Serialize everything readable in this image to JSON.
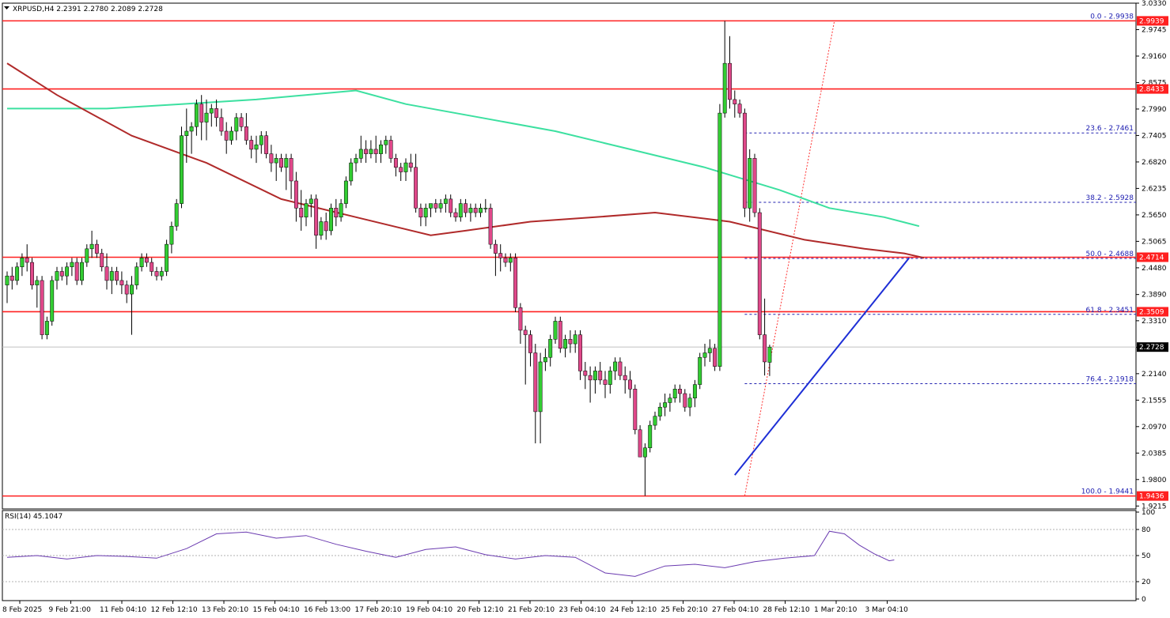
{
  "header": {
    "symbol_info": "XRPUSD,H4  2.2391 2.2780 2.2089 2.2728"
  },
  "rsi_panel": {
    "label": "RSI(14) 45.1047"
  },
  "colors": {
    "bull": "#32cd32",
    "bear": "#e0488a",
    "hline": "#ff2020",
    "fib": "#2020b0",
    "trend": "#1e2fd6",
    "ma_long": "#3ce0a0",
    "ma_short": "#b02a2a",
    "rsi": "#6a3ab0",
    "current_box": "#000000"
  },
  "chart_data": {
    "type": "candlestick",
    "symbol": "XRPUSD",
    "timeframe": "H4",
    "ylim": [
      1.915,
      3.033
    ],
    "y_ticks": [
      "3.0330",
      "2.9745",
      "2.9160",
      "2.8575",
      "2.7990",
      "2.7405",
      "2.6820",
      "2.6235",
      "2.5650",
      "2.5065",
      "2.4480",
      "2.3890",
      "2.3310",
      "2.2725",
      "2.2140",
      "2.1555",
      "2.0970",
      "2.0385",
      "1.9800",
      "1.9215"
    ],
    "x_ticks": [
      "8 Feb 2025",
      "9 Feb 21:00",
      "11 Feb 04:10",
      "12 Feb 12:10",
      "13 Feb 20:10",
      "15 Feb 04:10",
      "16 Feb 13:00",
      "17 Feb 20:10",
      "19 Feb 04:10",
      "20 Feb 12:10",
      "21 Feb 20:10",
      "23 Feb 04:10",
      "24 Feb 12:10",
      "25 Feb 20:10",
      "27 Feb 04:10",
      "28 Feb 12:10",
      "1 Mar 20:10",
      "3 Mar 04:10"
    ],
    "candle_spacing_note": "6 bars per tick interval",
    "candles": [
      [
        2.41,
        2.44,
        2.37,
        2.43
      ],
      [
        2.43,
        2.45,
        2.4,
        2.42
      ],
      [
        2.42,
        2.46,
        2.41,
        2.45
      ],
      [
        2.45,
        2.48,
        2.43,
        2.47
      ],
      [
        2.47,
        2.5,
        2.44,
        2.46
      ],
      [
        2.46,
        2.47,
        2.4,
        2.41
      ],
      [
        2.41,
        2.43,
        2.36,
        2.42
      ],
      [
        2.42,
        2.43,
        2.29,
        2.3
      ],
      [
        2.3,
        2.34,
        2.29,
        2.33
      ],
      [
        2.33,
        2.43,
        2.32,
        2.42
      ],
      [
        2.42,
        2.45,
        2.4,
        2.44
      ],
      [
        2.44,
        2.45,
        2.42,
        2.43
      ],
      [
        2.43,
        2.46,
        2.41,
        2.45
      ],
      [
        2.45,
        2.47,
        2.43,
        2.46
      ],
      [
        2.46,
        2.47,
        2.41,
        2.42
      ],
      [
        2.42,
        2.47,
        2.41,
        2.46
      ],
      [
        2.46,
        2.5,
        2.45,
        2.49
      ],
      [
        2.49,
        2.53,
        2.47,
        2.5
      ],
      [
        2.5,
        2.51,
        2.47,
        2.48
      ],
      [
        2.48,
        2.49,
        2.44,
        2.45
      ],
      [
        2.45,
        2.48,
        2.4,
        2.42
      ],
      [
        2.42,
        2.45,
        2.39,
        2.44
      ],
      [
        2.44,
        2.45,
        2.41,
        2.42
      ],
      [
        2.42,
        2.44,
        2.39,
        2.41
      ],
      [
        2.41,
        2.42,
        2.37,
        2.39
      ],
      [
        2.39,
        2.43,
        2.3,
        2.41
      ],
      [
        2.41,
        2.46,
        2.4,
        2.45
      ],
      [
        2.45,
        2.48,
        2.44,
        2.47
      ],
      [
        2.47,
        2.48,
        2.45,
        2.46
      ],
      [
        2.46,
        2.47,
        2.43,
        2.44
      ],
      [
        2.44,
        2.45,
        2.42,
        2.43
      ],
      [
        2.43,
        2.45,
        2.42,
        2.44
      ],
      [
        2.44,
        2.51,
        2.43,
        2.5
      ],
      [
        2.5,
        2.55,
        2.48,
        2.54
      ],
      [
        2.54,
        2.6,
        2.53,
        2.59
      ],
      [
        2.59,
        2.76,
        2.58,
        2.74
      ],
      [
        2.74,
        2.8,
        2.68,
        2.75
      ],
      [
        2.75,
        2.77,
        2.7,
        2.76
      ],
      [
        2.76,
        2.82,
        2.74,
        2.81
      ],
      [
        2.81,
        2.83,
        2.73,
        2.77
      ],
      [
        2.77,
        2.82,
        2.73,
        2.79
      ],
      [
        2.79,
        2.81,
        2.76,
        2.8
      ],
      [
        2.8,
        2.82,
        2.76,
        2.78
      ],
      [
        2.78,
        2.8,
        2.74,
        2.75
      ],
      [
        2.75,
        2.77,
        2.7,
        2.73
      ],
      [
        2.73,
        2.76,
        2.72,
        2.75
      ],
      [
        2.75,
        2.79,
        2.73,
        2.78
      ],
      [
        2.78,
        2.79,
        2.75,
        2.76
      ],
      [
        2.76,
        2.79,
        2.72,
        2.73
      ],
      [
        2.73,
        2.74,
        2.69,
        2.71
      ],
      [
        2.71,
        2.74,
        2.68,
        2.72
      ],
      [
        2.72,
        2.75,
        2.7,
        2.74
      ],
      [
        2.74,
        2.75,
        2.69,
        2.7
      ],
      [
        2.7,
        2.72,
        2.66,
        2.68
      ],
      [
        2.68,
        2.7,
        2.64,
        2.69
      ],
      [
        2.69,
        2.7,
        2.66,
        2.67
      ],
      [
        2.67,
        2.7,
        2.62,
        2.69
      ],
      [
        2.69,
        2.7,
        2.6,
        2.64
      ],
      [
        2.64,
        2.66,
        2.55,
        2.58
      ],
      [
        2.58,
        2.62,
        2.53,
        2.56
      ],
      [
        2.56,
        2.6,
        2.54,
        2.59
      ],
      [
        2.59,
        2.61,
        2.56,
        2.6
      ],
      [
        2.6,
        2.61,
        2.49,
        2.52
      ],
      [
        2.52,
        2.56,
        2.51,
        2.55
      ],
      [
        2.55,
        2.57,
        2.51,
        2.53
      ],
      [
        2.53,
        2.59,
        2.52,
        2.58
      ],
      [
        2.58,
        2.6,
        2.54,
        2.56
      ],
      [
        2.56,
        2.6,
        2.55,
        2.59
      ],
      [
        2.59,
        2.65,
        2.58,
        2.64
      ],
      [
        2.64,
        2.69,
        2.63,
        2.68
      ],
      [
        2.68,
        2.7,
        2.66,
        2.69
      ],
      [
        2.69,
        2.74,
        2.68,
        2.71
      ],
      [
        2.71,
        2.73,
        2.68,
        2.7
      ],
      [
        2.7,
        2.73,
        2.69,
        2.71
      ],
      [
        2.71,
        2.74,
        2.68,
        2.7
      ],
      [
        2.7,
        2.73,
        2.68,
        2.72
      ],
      [
        2.72,
        2.74,
        2.7,
        2.73
      ],
      [
        2.73,
        2.74,
        2.68,
        2.69
      ],
      [
        2.69,
        2.7,
        2.65,
        2.67
      ],
      [
        2.67,
        2.68,
        2.64,
        2.66
      ],
      [
        2.66,
        2.69,
        2.64,
        2.68
      ],
      [
        2.68,
        2.7,
        2.66,
        2.67
      ],
      [
        2.67,
        2.7,
        2.57,
        2.58
      ],
      [
        2.58,
        2.59,
        2.54,
        2.56
      ],
      [
        2.56,
        2.59,
        2.54,
        2.58
      ],
      [
        2.58,
        2.59,
        2.56,
        2.59
      ],
      [
        2.59,
        2.6,
        2.57,
        2.58
      ],
      [
        2.58,
        2.6,
        2.57,
        2.59
      ],
      [
        2.59,
        2.61,
        2.57,
        2.6
      ],
      [
        2.6,
        2.61,
        2.56,
        2.57
      ],
      [
        2.57,
        2.58,
        2.55,
        2.56
      ],
      [
        2.56,
        2.6,
        2.55,
        2.59
      ],
      [
        2.59,
        2.6,
        2.56,
        2.57
      ],
      [
        2.57,
        2.59,
        2.55,
        2.58
      ],
      [
        2.58,
        2.59,
        2.56,
        2.57
      ],
      [
        2.57,
        2.59,
        2.56,
        2.58
      ],
      [
        2.58,
        2.6,
        2.57,
        2.58
      ],
      [
        2.58,
        2.59,
        2.49,
        2.5
      ],
      [
        2.5,
        2.51,
        2.43,
        2.48
      ],
      [
        2.48,
        2.5,
        2.44,
        2.47
      ],
      [
        2.47,
        2.48,
        2.45,
        2.46
      ],
      [
        2.46,
        2.48,
        2.44,
        2.47
      ],
      [
        2.47,
        2.48,
        2.35,
        2.36
      ],
      [
        2.36,
        2.37,
        2.28,
        2.31
      ],
      [
        2.31,
        2.32,
        2.19,
        2.3
      ],
      [
        2.3,
        2.31,
        2.23,
        2.26
      ],
      [
        2.26,
        2.28,
        2.06,
        2.13
      ],
      [
        2.13,
        2.26,
        2.06,
        2.24
      ],
      [
        2.24,
        2.27,
        2.22,
        2.25
      ],
      [
        2.25,
        2.3,
        2.23,
        2.29
      ],
      [
        2.29,
        2.34,
        2.28,
        2.33
      ],
      [
        2.33,
        2.34,
        2.26,
        2.27
      ],
      [
        2.27,
        2.3,
        2.25,
        2.29
      ],
      [
        2.29,
        2.31,
        2.26,
        2.28
      ],
      [
        2.28,
        2.31,
        2.26,
        2.3
      ],
      [
        2.3,
        2.31,
        2.2,
        2.22
      ],
      [
        2.22,
        2.24,
        2.18,
        2.21
      ],
      [
        2.21,
        2.23,
        2.15,
        2.2
      ],
      [
        2.2,
        2.23,
        2.17,
        2.22
      ],
      [
        2.22,
        2.24,
        2.19,
        2.2
      ],
      [
        2.2,
        2.22,
        2.16,
        2.19
      ],
      [
        2.19,
        2.23,
        2.17,
        2.22
      ],
      [
        2.22,
        2.25,
        2.2,
        2.24
      ],
      [
        2.24,
        2.25,
        2.2,
        2.21
      ],
      [
        2.21,
        2.23,
        2.17,
        2.2
      ],
      [
        2.2,
        2.22,
        2.16,
        2.18
      ],
      [
        2.18,
        2.19,
        2.08,
        2.09
      ],
      [
        2.09,
        2.1,
        2.03,
        2.03
      ],
      [
        2.03,
        2.06,
        1.944,
        2.05
      ],
      [
        2.05,
        2.11,
        2.04,
        2.1
      ],
      [
        2.1,
        2.13,
        2.09,
        2.12
      ],
      [
        2.12,
        2.15,
        2.11,
        2.14
      ],
      [
        2.14,
        2.17,
        2.12,
        2.15
      ],
      [
        2.15,
        2.17,
        2.13,
        2.16
      ],
      [
        2.16,
        2.19,
        2.15,
        2.18
      ],
      [
        2.18,
        2.19,
        2.15,
        2.17
      ],
      [
        2.17,
        2.18,
        2.13,
        2.14
      ],
      [
        2.14,
        2.17,
        2.12,
        2.16
      ],
      [
        2.16,
        2.2,
        2.14,
        2.19
      ],
      [
        2.19,
        2.26,
        2.18,
        2.25
      ],
      [
        2.25,
        2.28,
        2.23,
        2.26
      ],
      [
        2.26,
        2.29,
        2.24,
        2.27
      ],
      [
        2.27,
        2.28,
        2.22,
        2.23
      ],
      [
        2.23,
        2.81,
        2.22,
        2.79
      ],
      [
        2.79,
        2.9939,
        2.78,
        2.9
      ],
      [
        2.9,
        2.96,
        2.8,
        2.82
      ],
      [
        2.82,
        2.84,
        2.78,
        2.81
      ],
      [
        2.81,
        2.82,
        2.78,
        2.79
      ],
      [
        2.79,
        2.8,
        2.56,
        2.58
      ],
      [
        2.58,
        2.71,
        2.55,
        2.69
      ],
      [
        2.69,
        2.7,
        2.56,
        2.57
      ],
      [
        2.57,
        2.58,
        2.29,
        2.3
      ],
      [
        2.3,
        2.38,
        2.21,
        2.24
      ],
      [
        2.2391,
        2.278,
        2.2089,
        2.2728
      ]
    ],
    "hlines": [
      2.9939,
      2.8433,
      2.4714,
      2.3509,
      1.9436
    ],
    "hline_labels": [
      "2.9939",
      "2.8433",
      "2.4714",
      "2.3509",
      "1.9436"
    ],
    "current_price": "2.2728",
    "fib_levels": [
      {
        "value": 2.9938,
        "label": "0.0 - 2.9938"
      },
      {
        "value": 2.7461,
        "label": "23.6 - 2.7461"
      },
      {
        "value": 2.5928,
        "label": "38.2 - 2.5928"
      },
      {
        "value": 2.4688,
        "label": "50.0 - 2.4688"
      },
      {
        "value": 2.3451,
        "label": "61.8 - 2.3451"
      },
      {
        "value": 2.1918,
        "label": "76.4 - 2.1918"
      },
      {
        "value": 1.9441,
        "label": "100.0 - 1.9441"
      }
    ],
    "trendline": [
      [
        146,
        1.99
      ],
      [
        181,
        2.47
      ]
    ],
    "fib_anchor_line": [
      [
        148,
        1.944
      ],
      [
        166,
        2.994
      ]
    ],
    "ma_long": [
      [
        0,
        2.8
      ],
      [
        20,
        2.8
      ],
      [
        35,
        2.81
      ],
      [
        50,
        2.82
      ],
      [
        70,
        2.84
      ],
      [
        80,
        2.81
      ],
      [
        95,
        2.78
      ],
      [
        110,
        2.75
      ],
      [
        125,
        2.71
      ],
      [
        140,
        2.67
      ],
      [
        155,
        2.62
      ],
      [
        165,
        2.58
      ],
      [
        176,
        2.56
      ],
      [
        183,
        2.54
      ]
    ],
    "ma_short": [
      [
        0,
        2.9
      ],
      [
        10,
        2.83
      ],
      [
        25,
        2.74
      ],
      [
        40,
        2.68
      ],
      [
        55,
        2.6
      ],
      [
        70,
        2.56
      ],
      [
        85,
        2.52
      ],
      [
        92,
        2.53
      ],
      [
        105,
        2.55
      ],
      [
        118,
        2.56
      ],
      [
        130,
        2.57
      ],
      [
        145,
        2.55
      ],
      [
        160,
        2.51
      ],
      [
        172,
        2.49
      ],
      [
        180,
        2.48
      ],
      [
        184,
        2.47
      ]
    ],
    "rsi": {
      "levels": [
        80,
        50,
        20
      ],
      "y_ticks": [
        "100",
        "80",
        "50",
        "20",
        "0"
      ],
      "values": [
        [
          0,
          48
        ],
        [
          6,
          50
        ],
        [
          12,
          46
        ],
        [
          18,
          50
        ],
        [
          24,
          49
        ],
        [
          30,
          47
        ],
        [
          36,
          58
        ],
        [
          42,
          75
        ],
        [
          48,
          77
        ],
        [
          54,
          70
        ],
        [
          60,
          73
        ],
        [
          66,
          63
        ],
        [
          72,
          55
        ],
        [
          78,
          48
        ],
        [
          84,
          57
        ],
        [
          90,
          60
        ],
        [
          96,
          51
        ],
        [
          102,
          46
        ],
        [
          108,
          50
        ],
        [
          114,
          48
        ],
        [
          120,
          30
        ],
        [
          126,
          26
        ],
        [
          132,
          38
        ],
        [
          138,
          40
        ],
        [
          144,
          36
        ],
        [
          150,
          43
        ],
        [
          156,
          47
        ],
        [
          162,
          50
        ],
        [
          165,
          78
        ],
        [
          168,
          75
        ],
        [
          171,
          62
        ],
        [
          174,
          52
        ],
        [
          177,
          44
        ],
        [
          178,
          45
        ]
      ]
    }
  }
}
